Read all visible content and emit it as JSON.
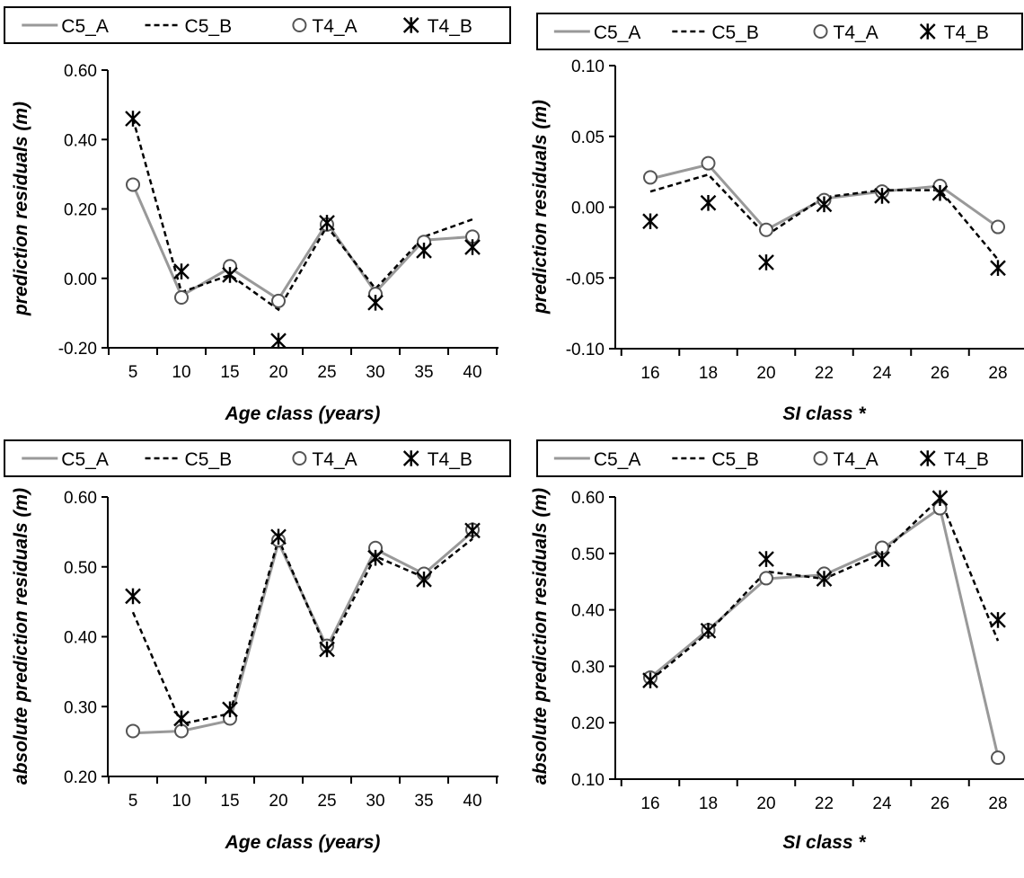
{
  "legend": [
    "C5_A",
    "C5_B",
    "T4_A",
    "T4_B"
  ],
  "colors": {
    "C5_A": "#999999",
    "C5_B": "#000000",
    "T4_A": "#555555",
    "T4_B": "#000000"
  },
  "chart_data": [
    {
      "type": "line",
      "title": "",
      "xlabel": "Age class (years)",
      "ylabel": "prediction residuals (m)",
      "x": [
        5,
        10,
        15,
        20,
        25,
        30,
        35,
        40
      ],
      "xticks": [
        "5",
        "10",
        "15",
        "20",
        "25",
        "30",
        "35",
        "40"
      ],
      "ylim": [
        -0.2,
        0.6
      ],
      "yticks": [
        "-0.20",
        "0.00",
        "0.20",
        "0.40",
        "0.60"
      ],
      "legend_position": "top",
      "grid": false,
      "series": [
        {
          "name": "C5_A",
          "style": "solid-line",
          "values": [
            0.27,
            -0.05,
            0.03,
            -0.06,
            0.16,
            -0.04,
            0.11,
            0.12
          ]
        },
        {
          "name": "C5_B",
          "style": "dashed-line",
          "values": [
            0.46,
            -0.04,
            0.01,
            -0.09,
            0.15,
            -0.03,
            0.12,
            0.17
          ]
        },
        {
          "name": "T4_A",
          "style": "circle-marker",
          "values": [
            0.27,
            -0.055,
            0.035,
            -0.065,
            0.155,
            -0.045,
            0.105,
            0.12
          ]
        },
        {
          "name": "T4_B",
          "style": "asterisk-marker",
          "values": [
            0.46,
            0.02,
            0.01,
            -0.18,
            0.16,
            -0.07,
            0.08,
            0.09
          ]
        }
      ]
    },
    {
      "type": "line",
      "title": "",
      "xlabel": "SI class *",
      "ylabel": "prediction residuals (m)",
      "x": [
        16,
        18,
        20,
        22,
        24,
        26,
        28
      ],
      "xticks": [
        "16",
        "18",
        "20",
        "22",
        "24",
        "26",
        "28"
      ],
      "ylim": [
        -0.1,
        0.1
      ],
      "yticks": [
        "-0.10",
        "-0.05",
        "0.00",
        "0.05",
        "0.10"
      ],
      "legend_position": "top",
      "grid": false,
      "series": [
        {
          "name": "C5_A",
          "style": "solid-line",
          "values": [
            0.02,
            0.03,
            -0.016,
            0.006,
            0.011,
            0.015,
            -0.014
          ]
        },
        {
          "name": "C5_B",
          "style": "dashed-line",
          "values": [
            0.011,
            0.023,
            -0.02,
            0.007,
            0.012,
            0.012,
            -0.037
          ]
        },
        {
          "name": "T4_A",
          "style": "circle-marker",
          "values": [
            0.021,
            0.031,
            -0.016,
            0.005,
            0.011,
            0.015,
            -0.014
          ]
        },
        {
          "name": "T4_B",
          "style": "asterisk-marker",
          "values": [
            -0.01,
            0.003,
            -0.039,
            0.002,
            0.008,
            0.01,
            -0.043
          ]
        }
      ]
    },
    {
      "type": "line",
      "title": "",
      "xlabel": "Age class (years)",
      "ylabel": "absolute prediction residuals (m)",
      "x": [
        5,
        10,
        15,
        20,
        25,
        30,
        35,
        40
      ],
      "xticks": [
        "5",
        "10",
        "15",
        "20",
        "25",
        "30",
        "35",
        "40"
      ],
      "ylim": [
        0.2,
        0.6
      ],
      "yticks": [
        "0.20",
        "0.30",
        "0.40",
        "0.50",
        "0.60"
      ],
      "legend_position": "top",
      "grid": false,
      "series": [
        {
          "name": "C5_A",
          "style": "solid-line",
          "values": [
            0.262,
            0.265,
            0.28,
            0.535,
            0.385,
            0.525,
            0.49,
            0.55
          ]
        },
        {
          "name": "C5_B",
          "style": "dashed-line",
          "values": [
            0.435,
            0.275,
            0.29,
            0.54,
            0.38,
            0.515,
            0.485,
            0.54
          ]
        },
        {
          "name": "T4_A",
          "style": "circle-marker",
          "values": [
            0.265,
            0.265,
            0.283,
            0.538,
            0.387,
            0.527,
            0.49,
            0.553
          ]
        },
        {
          "name": "T4_B",
          "style": "asterisk-marker",
          "values": [
            0.458,
            0.283,
            0.296,
            0.543,
            0.382,
            0.513,
            0.482,
            0.552
          ]
        }
      ]
    },
    {
      "type": "line",
      "title": "",
      "xlabel": "SI class *",
      "ylabel": "absolute prediction residuals (m)",
      "x": [
        16,
        18,
        20,
        22,
        24,
        26,
        28
      ],
      "xticks": [
        "16",
        "18",
        "20",
        "22",
        "24",
        "26",
        "28"
      ],
      "ylim": [
        0.1,
        0.6
      ],
      "yticks": [
        "0.10",
        "0.20",
        "0.30",
        "0.40",
        "0.50",
        "0.60"
      ],
      "legend_position": "top",
      "grid": false,
      "series": [
        {
          "name": "C5_A",
          "style": "solid-line",
          "values": [
            0.28,
            0.365,
            0.455,
            0.462,
            0.508,
            0.58,
            0.14
          ]
        },
        {
          "name": "C5_B",
          "style": "dashed-line",
          "values": [
            0.275,
            0.36,
            0.468,
            0.455,
            0.5,
            0.598,
            0.345
          ]
        },
        {
          "name": "T4_A",
          "style": "circle-marker",
          "values": [
            0.28,
            0.364,
            0.456,
            0.464,
            0.51,
            0.58,
            0.138
          ]
        },
        {
          "name": "T4_B",
          "style": "asterisk-marker",
          "values": [
            0.275,
            0.363,
            0.49,
            0.455,
            0.49,
            0.598,
            0.382
          ]
        }
      ]
    }
  ]
}
